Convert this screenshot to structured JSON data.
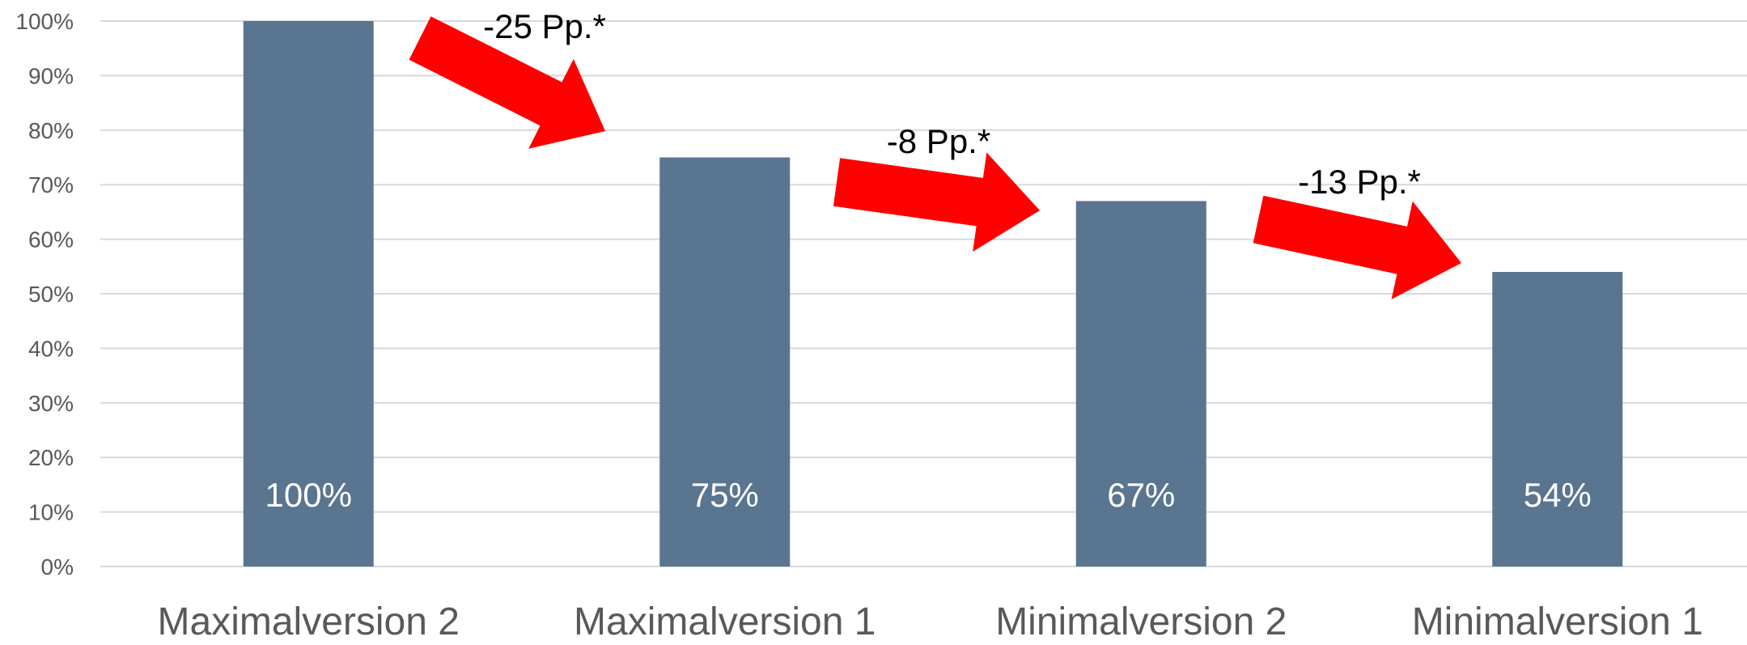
{
  "chart_data": {
    "type": "bar",
    "title": "",
    "xlabel": "",
    "ylabel": "",
    "categories": [
      "Maximalversion 2",
      "Maximalversion 1",
      "Minimalversion 2",
      "Minimalversion 1"
    ],
    "values": [
      100,
      75,
      67,
      54
    ],
    "value_labels": [
      "100%",
      "75%",
      "67%",
      "54%"
    ],
    "ylim": [
      0,
      100
    ],
    "yticks": [
      0,
      10,
      20,
      30,
      40,
      50,
      60,
      70,
      80,
      90,
      100
    ],
    "ytick_labels": [
      "0%",
      "10%",
      "20%",
      "30%",
      "40%",
      "50%",
      "60%",
      "70%",
      "80%",
      "90%",
      "100%"
    ],
    "grid": true,
    "legend": "none",
    "bar_color": "#5a7590",
    "value_label_color": "#ffffff",
    "gridline_color": "#d9d9d9",
    "axis_text_color": "#595959",
    "annotations": [
      {
        "label": "-25 Pp.*",
        "from": "Maximalversion 2",
        "to": "Maximalversion 1",
        "color": "#ff0000"
      },
      {
        "label": "-8 Pp.*",
        "from": "Maximalversion 1",
        "to": "Minimalversion 2",
        "color": "#ff0000"
      },
      {
        "label": "-13 Pp.*",
        "from": "Minimalversion 2",
        "to": "Minimalversion 1",
        "color": "#ff0000"
      }
    ]
  }
}
